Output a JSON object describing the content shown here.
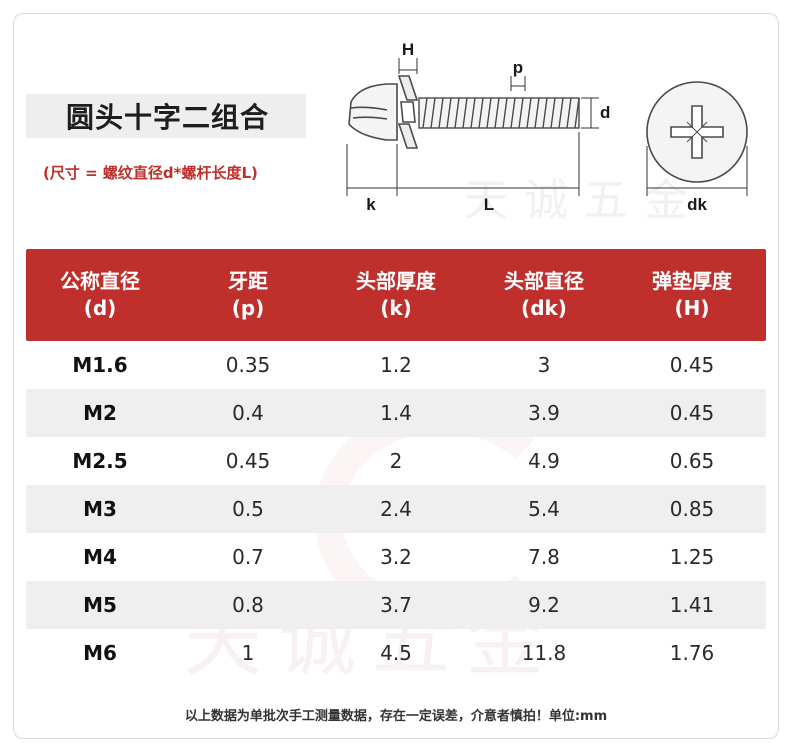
{
  "title": "圆头十字二组合",
  "spec_note": "(尺寸 = 螺纹直径d*螺杆长度L)",
  "watermark": {
    "brand": "天诚五金"
  },
  "diagram_labels": {
    "H": "H",
    "p": "p",
    "d": "d",
    "k": "k",
    "L": "L",
    "dk": "dk"
  },
  "table": {
    "headers": [
      {
        "name": "公称直径",
        "symbol": "(d)"
      },
      {
        "name": "牙距",
        "symbol": "(p)"
      },
      {
        "name": "头部厚度",
        "symbol": "(k)"
      },
      {
        "name": "头部直径",
        "symbol": "(dk)"
      },
      {
        "name": "弹垫厚度",
        "symbol": "(H)"
      }
    ],
    "rows": [
      [
        "M1.6",
        "0.35",
        "1.2",
        "3",
        "0.45"
      ],
      [
        "M2",
        "0.4",
        "1.4",
        "3.9",
        "0.45"
      ],
      [
        "M2.5",
        "0.45",
        "2",
        "4.9",
        "0.65"
      ],
      [
        "M3",
        "0.5",
        "2.4",
        "5.4",
        "0.85"
      ],
      [
        "M4",
        "0.7",
        "3.2",
        "7.8",
        "1.25"
      ],
      [
        "M5",
        "0.8",
        "3.7",
        "9.2",
        "1.41"
      ],
      [
        "M6",
        "1",
        "4.5",
        "11.8",
        "1.76"
      ]
    ]
  },
  "footnote": "以上数据为单批次手工测量数据，存在一定误差，介意者慎拍！单位:mm",
  "colors": {
    "accent": "#bf302d",
    "row_alt": "#efefef",
    "note": "#bf2f2b"
  }
}
